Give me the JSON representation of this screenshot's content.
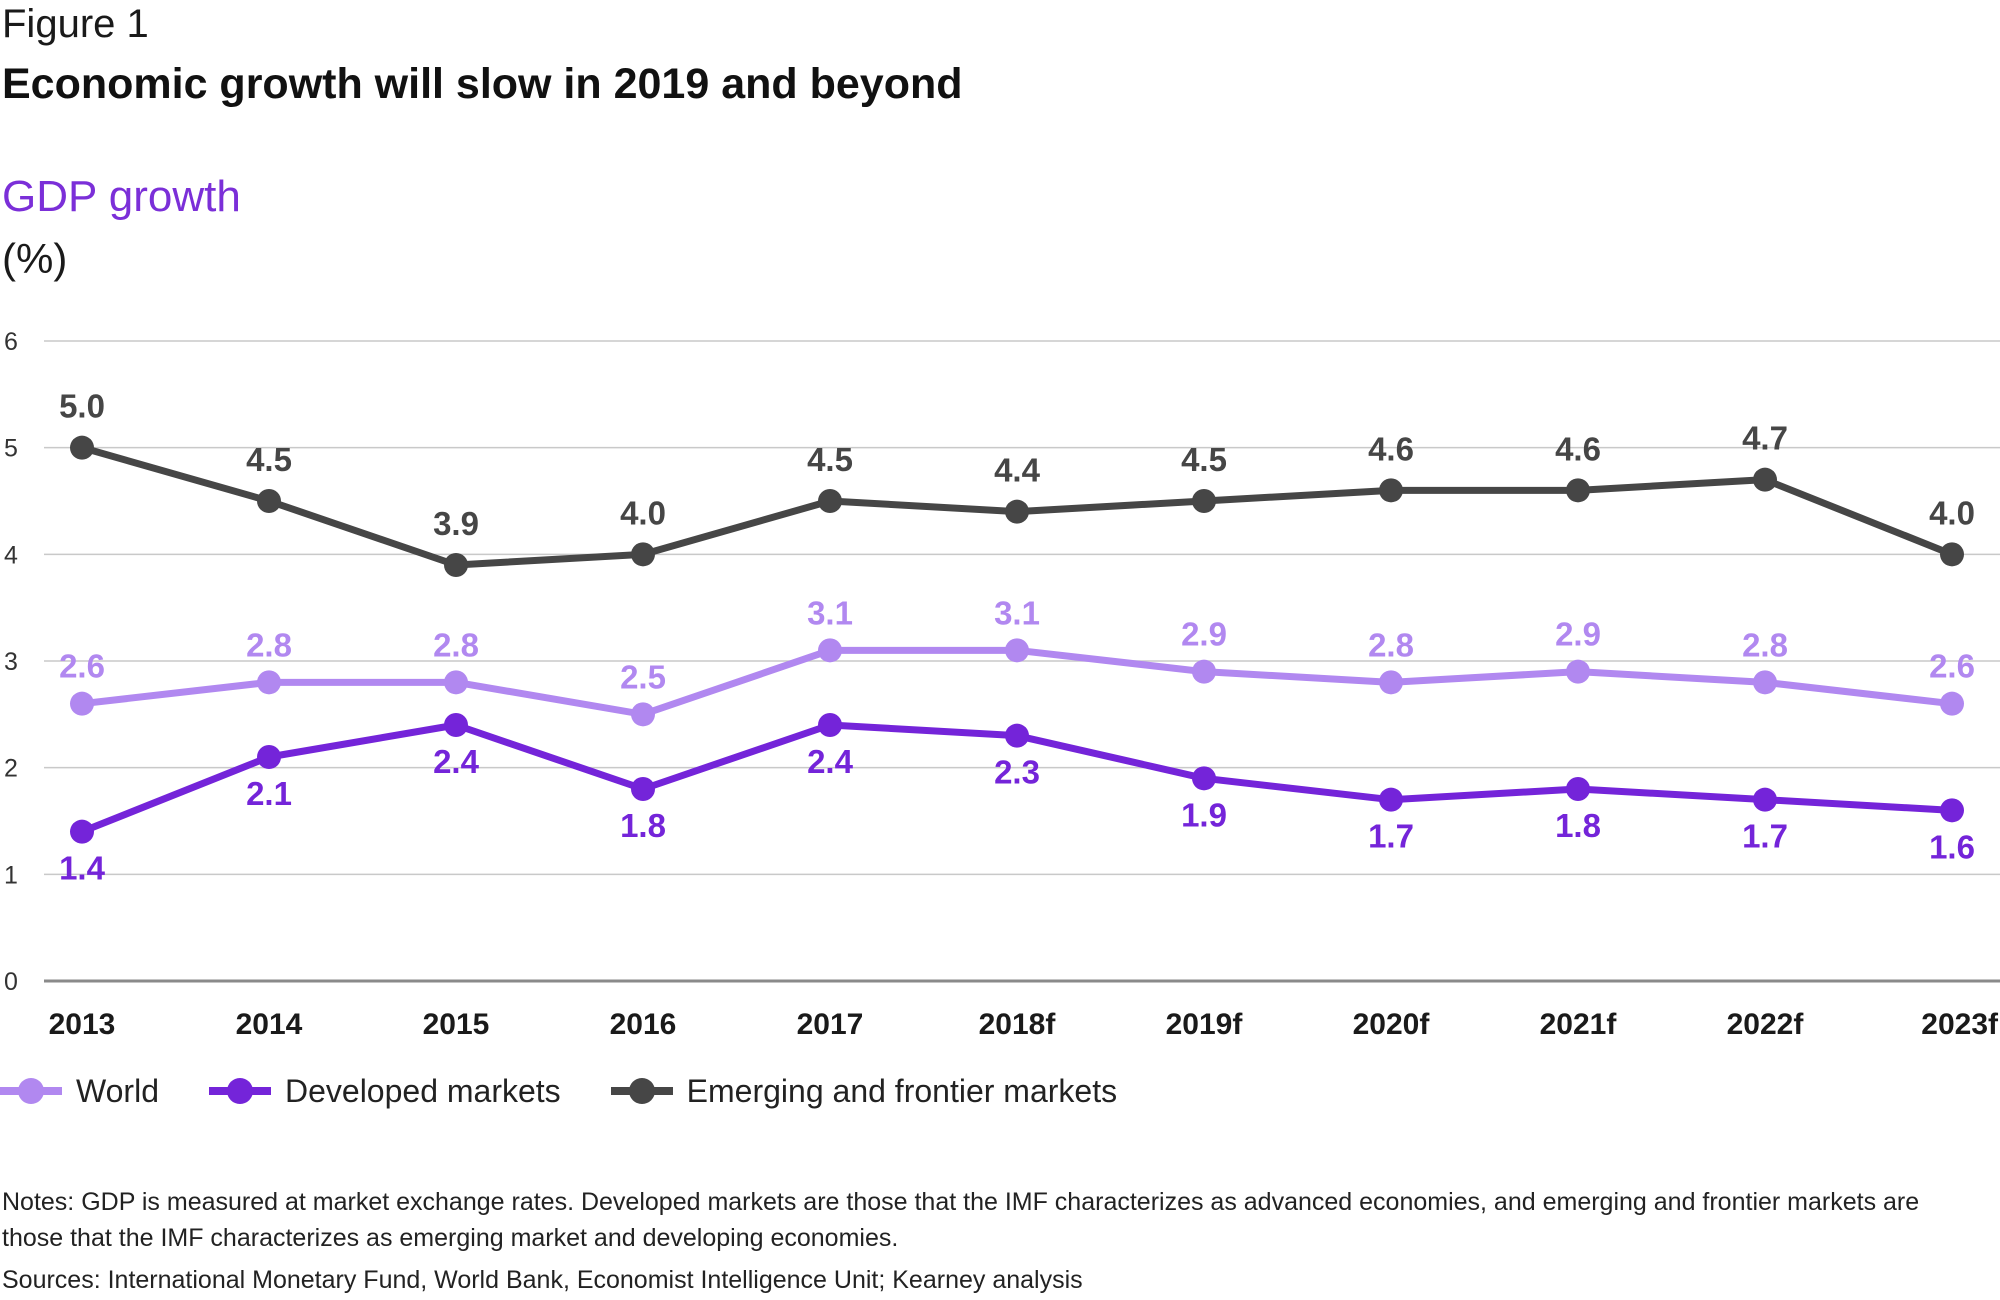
{
  "figure_label": "Figure 1",
  "title": "Economic growth will slow in 2019 and beyond",
  "chart_data": {
    "type": "line",
    "title": "Economic growth will slow in 2019 and beyond",
    "ylabel": "GDP growth",
    "yunit": "(%)",
    "ylim": [
      0,
      6
    ],
    "yticks": [
      0,
      1,
      2,
      3,
      4,
      5,
      6
    ],
    "grid": true,
    "legend_position": "bottom-left",
    "categories": [
      "2013",
      "2014",
      "2015",
      "2016",
      "2017",
      "2018f",
      "2019f",
      "2020f",
      "2021f",
      "2022f",
      "2023f"
    ],
    "series": [
      {
        "name": "World",
        "color": "#b188f0",
        "values": [
          2.6,
          2.8,
          2.8,
          2.5,
          3.1,
          3.1,
          2.9,
          2.8,
          2.9,
          2.8,
          2.6
        ],
        "labels": [
          "2.6",
          "2.8",
          "2.8",
          "2.5",
          "3.1",
          "3.1",
          "2.9",
          "2.8",
          "2.9",
          "2.8",
          "2.6"
        ]
      },
      {
        "name": "Developed markets",
        "color": "#7424d9",
        "values": [
          1.4,
          2.1,
          2.4,
          1.8,
          2.4,
          2.3,
          1.9,
          1.7,
          1.8,
          1.7,
          1.6
        ],
        "labels": [
          "1.4",
          "2.1",
          "2.4",
          "1.8",
          "2.4",
          "2.3",
          "1.9",
          "1.7",
          "1.8",
          "1.7",
          "1.6"
        ]
      },
      {
        "name": "Emerging and frontier markets",
        "color": "#464646",
        "values": [
          5.0,
          4.5,
          3.9,
          4.0,
          4.5,
          4.4,
          4.5,
          4.6,
          4.6,
          4.7,
          4.0
        ],
        "labels": [
          "5.0",
          "4.5",
          "3.9",
          "4.0",
          "4.5",
          "4.4",
          "4.5",
          "4.6",
          "4.6",
          "4.7",
          "4.0"
        ]
      }
    ]
  },
  "notes": "Notes: GDP is measured at market exchange rates. Developed markets are those that the IMF characterizes as advanced economies, and emerging and frontier markets are those that the IMF characterizes as emerging market and developing economies.",
  "sources": "Sources: International Monetary Fund, World Bank, Economist Intelligence Unit; Kearney analysis"
}
